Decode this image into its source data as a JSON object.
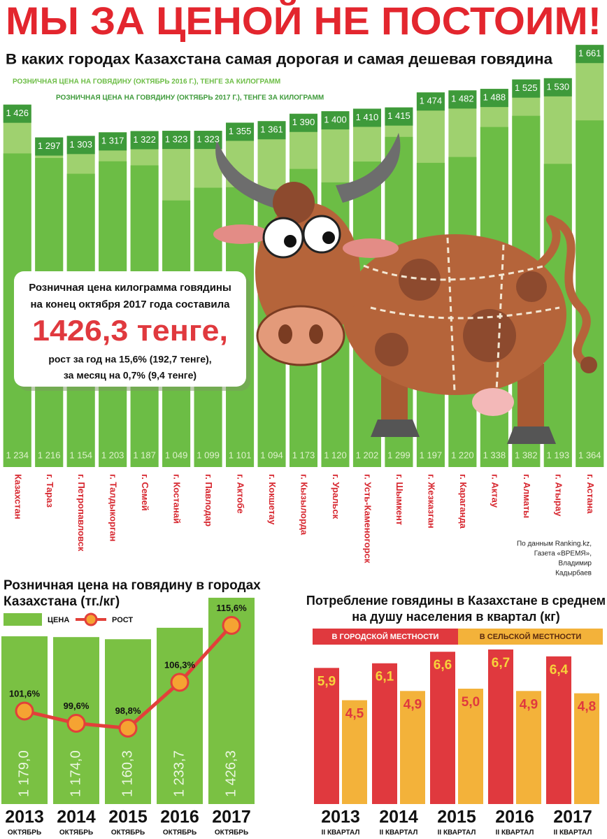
{
  "header": {
    "title": "МЫ ЗА ЦЕНОЙ НЕ ПОСТОИМ!",
    "subtitle": "В каких городах Казахстана самая дорогая и самая дешевая говядина"
  },
  "callout": {
    "text_top": [
      "Розничная цена килограмма говядины",
      "на конец октября 2017 года составила"
    ],
    "headline": "1426,3 тенге,",
    "text_bottom": [
      "рост за год на 15,6% (192,7 тенге),",
      "за месяц на 0,7% (9,4 тенге)"
    ]
  },
  "source": [
    "По данным Ranking.kz,",
    "Газета «ВРЕМЯ»,",
    "Владимир",
    "Кадырбаев"
  ],
  "chart_data": [
    {
      "type": "bar",
      "categories": [
        "Казахстан",
        "г. Тараз",
        "г. Петропавловск",
        "г. Талдыкорган",
        "г. Семей",
        "г. Костанай",
        "г. Павлодар",
        "г. Актобе",
        "г. Кокшетау",
        "г. Кызылорда",
        "г. Уральск",
        "г. Усть-Каменогорск",
        "г. Шымкент",
        "г. Жезказган",
        "г. Караганда",
        "г. Актау",
        "г. Алматы",
        "г. Атырау",
        "г. Астана"
      ],
      "series": [
        {
          "name": "РОЗНИЧНАЯ ЦЕНА НА ГОВЯДИНУ (ОКТЯБРЬ 2016 Г.), ТЕНГЕ ЗА КИЛОГРАММ",
          "color": "#6cbd45",
          "values": [
            1234,
            1216,
            1154,
            1203,
            1187,
            1049,
            1099,
            1101,
            1094,
            1173,
            1120,
            1202,
            1299,
            1197,
            1220,
            1338,
            1382,
            1193,
            1364
          ],
          "value_labels": [
            "1 234",
            "1 216",
            "1 154",
            "1 203",
            "1 187",
            "1 049",
            "1 099",
            "1 101",
            "1 094",
            "1 173",
            "1 120",
            "1 202",
            "1 299",
            "1 197",
            "1 220",
            "1 338",
            "1 382",
            "1 193",
            "1 364"
          ]
        },
        {
          "name": "РОЗНИЧНАЯ ЦЕНА НА ГОВЯДИНУ (ОКТЯБРЬ 2017 Г.), ТЕНГЕ ЗА КИЛОГРАММ",
          "color": "#9fd16f",
          "values": [
            1426,
            1297,
            1303,
            1317,
            1322,
            1323,
            1323,
            1355,
            1361,
            1390,
            1400,
            1410,
            1415,
            1474,
            1482,
            1488,
            1525,
            1530,
            1661
          ],
          "value_labels": [
            "1 426",
            "1 297",
            "1 303",
            "1 317",
            "1 322",
            "1 323",
            "1 323",
            "1 355",
            "1 361",
            "1 390",
            "1 400",
            "1 410",
            "1 415",
            "1 474",
            "1 482",
            "1 488",
            "1 525",
            "1 530",
            "1 661"
          ]
        }
      ]
    },
    {
      "type": "bar",
      "title": [
        "Розничная цена на говядину  в городах",
        "Казахстана (тг./кг)"
      ],
      "categories": [
        "2013",
        "2014",
        "2015",
        "2016",
        "2017"
      ],
      "category_sublabel": "ОКТЯБРЬ",
      "series": [
        {
          "name": "ЦЕНА",
          "color": "#7ac143",
          "values": [
            1179.0,
            1174.0,
            1160.3,
            1233.7,
            1426.3
          ],
          "value_labels": [
            "1 179,0",
            "1 174,0",
            "1 160,3",
            "1 233,7",
            "1 426,3"
          ]
        },
        {
          "name": "РОСТ",
          "type": "line",
          "axis": "y2",
          "color": "#e2403a",
          "marker_color": "#f5a332",
          "values": [
            101.6,
            99.6,
            98.8,
            106.3,
            115.6
          ],
          "value_labels": [
            "101,6%",
            "99,6%",
            "98,8%",
            "106,3%",
            "115,6%"
          ]
        }
      ]
    },
    {
      "type": "bar",
      "title": [
        "Потребление говядины в Казахстане в среднем",
        "на душу населения в квартал (кг)"
      ],
      "categories": [
        "2013",
        "2014",
        "2015",
        "2016",
        "2017"
      ],
      "category_sublabel": "II КВАРТАЛ",
      "series": [
        {
          "name": "В ГОРОДСКОЙ МЕСТНОСТИ",
          "color": "#e0393e",
          "values": [
            5.9,
            6.1,
            6.6,
            6.7,
            6.4
          ],
          "value_labels": [
            "5,9",
            "6,1",
            "6,6",
            "6,7",
            "6,4"
          ]
        },
        {
          "name": "В СЕЛЬСКОЙ МЕСТНОСТИ",
          "color": "#f3b23a",
          "values": [
            4.5,
            4.9,
            5.0,
            4.9,
            4.8
          ],
          "value_labels": [
            "4,5",
            "4,9",
            "5,0",
            "4,9",
            "4,8"
          ]
        }
      ]
    }
  ]
}
